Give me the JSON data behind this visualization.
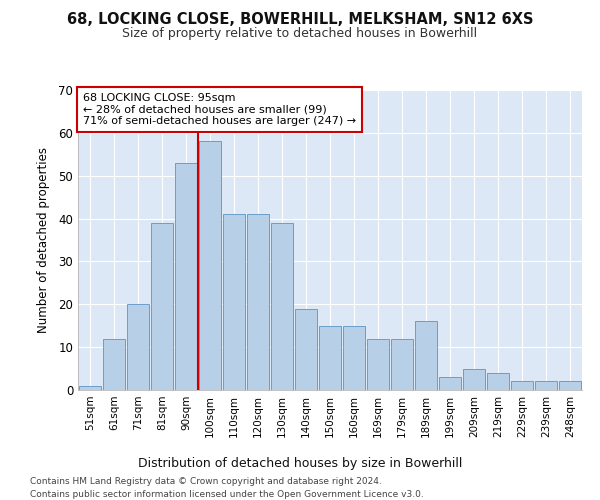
{
  "title": "68, LOCKING CLOSE, BOWERHILL, MELKSHAM, SN12 6XS",
  "subtitle": "Size of property relative to detached houses in Bowerhill",
  "xlabel": "Distribution of detached houses by size in Bowerhill",
  "ylabel": "Number of detached properties",
  "bar_labels": [
    "51sqm",
    "61sqm",
    "71sqm",
    "81sqm",
    "90sqm",
    "100sqm",
    "110sqm",
    "120sqm",
    "130sqm",
    "140sqm",
    "150sqm",
    "160sqm",
    "169sqm",
    "179sqm",
    "189sqm",
    "199sqm",
    "209sqm",
    "219sqm",
    "229sqm",
    "239sqm",
    "248sqm"
  ],
  "bar_values": [
    1,
    12,
    20,
    39,
    53,
    58,
    41,
    41,
    39,
    19,
    15,
    15,
    12,
    12,
    16,
    3,
    5,
    4,
    2,
    2,
    2
  ],
  "bar_color": "#b8cfe8",
  "bar_edge_color": "#6a9fc8",
  "fig_bg_color": "#ffffff",
  "ax_bg_color": "#dce8f5",
  "grid_color": "#ffffff",
  "vline_x": 4.5,
  "vline_color": "#cc0000",
  "annotation_text": "68 LOCKING CLOSE: 95sqm\n← 28% of detached houses are smaller (99)\n71% of semi-detached houses are larger (247) →",
  "annotation_box_facecolor": "#ffffff",
  "annotation_box_edgecolor": "#cc0000",
  "ylim": [
    0,
    70
  ],
  "yticks": [
    0,
    10,
    20,
    30,
    40,
    50,
    60,
    70
  ],
  "footnote1": "Contains HM Land Registry data © Crown copyright and database right 2024.",
  "footnote2": "Contains public sector information licensed under the Open Government Licence v3.0."
}
